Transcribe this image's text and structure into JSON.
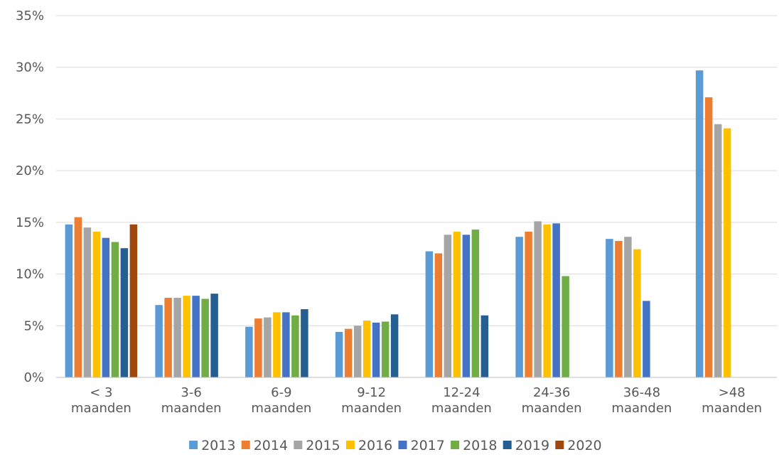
{
  "chart_data": {
    "type": "bar",
    "title": "",
    "xlabel": "",
    "ylabel": "",
    "ylim": [
      0,
      35
    ],
    "y_tick_step": 5,
    "y_tick_suffix": "%",
    "grid": "horizontal",
    "legend_position": "bottom",
    "categories": [
      [
        "< 3",
        "maanden"
      ],
      [
        "3-6",
        "maanden"
      ],
      [
        "6-9",
        "maanden"
      ],
      [
        "9-12",
        "maanden"
      ],
      [
        "12-24",
        "maanden"
      ],
      [
        "24-36",
        "maanden"
      ],
      [
        "36-48",
        "maanden"
      ],
      [
        ">48",
        "maanden"
      ]
    ],
    "series": [
      {
        "name": "2013",
        "color": "#5B9BD5",
        "values": [
          14.8,
          7.0,
          4.9,
          4.4,
          12.2,
          13.6,
          13.4,
          29.7
        ]
      },
      {
        "name": "2014",
        "color": "#ED7D31",
        "values": [
          15.5,
          7.7,
          5.7,
          4.7,
          12.0,
          14.1,
          13.2,
          27.1
        ]
      },
      {
        "name": "2015",
        "color": "#A5A5A5",
        "values": [
          14.5,
          7.7,
          5.8,
          5.0,
          13.8,
          15.1,
          13.6,
          24.5
        ]
      },
      {
        "name": "2016",
        "color": "#FFC000",
        "values": [
          14.1,
          7.9,
          6.3,
          5.5,
          14.1,
          14.8,
          12.4,
          24.1
        ]
      },
      {
        "name": "2017",
        "color": "#4472C4",
        "values": [
          13.5,
          7.9,
          6.3,
          5.3,
          13.8,
          14.9,
          7.4,
          null
        ]
      },
      {
        "name": "2018",
        "color": "#70AD47",
        "values": [
          13.1,
          7.6,
          6.0,
          5.4,
          14.3,
          9.8,
          null,
          null
        ]
      },
      {
        "name": "2019",
        "color": "#255E91",
        "values": [
          12.5,
          8.1,
          6.6,
          6.1,
          6.0,
          null,
          null,
          null
        ]
      },
      {
        "name": "2020",
        "color": "#9E480E",
        "values": [
          14.8,
          null,
          null,
          null,
          null,
          null,
          null,
          null
        ]
      }
    ]
  }
}
